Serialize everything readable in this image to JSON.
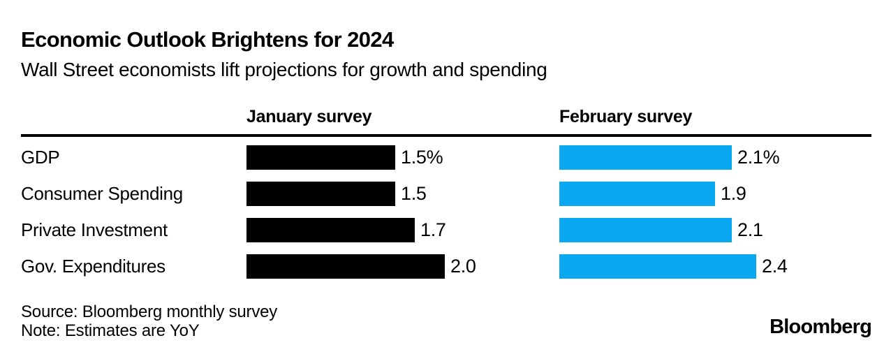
{
  "chart_data": {
    "type": "bar",
    "title": "Economic Outlook Brightens for 2024",
    "subtitle": "Wall Street economists lift projections for growth and spending",
    "categories": [
      "GDP",
      "Consumer Spending",
      "Private Investment",
      "Gov. Expenditures"
    ],
    "series": [
      {
        "name": "January survey",
        "values": [
          1.5,
          1.5,
          1.7,
          2.0
        ],
        "labels": [
          "1.5%",
          "1.5",
          "1.7",
          "2.0"
        ],
        "color": "#000000"
      },
      {
        "name": "February survey",
        "values": [
          2.1,
          1.9,
          2.1,
          2.4
        ],
        "labels": [
          "2.1%",
          "1.9",
          "2.1",
          "2.4"
        ],
        "color": "#0BA8F2"
      }
    ],
    "unit": "percent YoY",
    "layout_hint": "two side-by-side horizontal bar columns, each scaled to its own max; no axes or gridlines",
    "source": "Source: Bloomberg monthly survey",
    "note": "Note: Estimates are YoY",
    "logo": "Bloomberg"
  },
  "colors": {
    "bar_january": "#000000",
    "bar_february": "#0BA8F2",
    "text": "#000000",
    "background": "#FFFFFF"
  }
}
